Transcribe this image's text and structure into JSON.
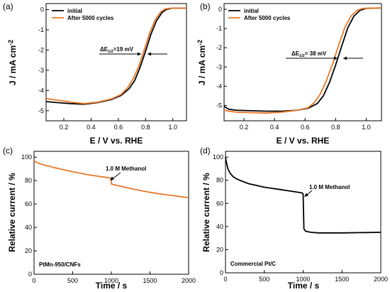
{
  "colors": {
    "initial": "#000000",
    "after": "#e8792a",
    "line_c": "#e8792a",
    "line_d": "#000000"
  },
  "chart_data": [
    {
      "panel": "(a)",
      "type": "line",
      "xlabel": "E / V vs. RHE",
      "ylabel": "J / mA cm-2",
      "xlim": [
        0.07,
        1.1
      ],
      "ylim": [
        -5.5,
        0.3
      ],
      "xticks": [
        0.2,
        0.4,
        0.6,
        0.8,
        1.0
      ],
      "xtick_labels": [
        "0.2",
        "0.4",
        "0.6",
        "0.8",
        "1.0"
      ],
      "yticks": [
        0,
        -1,
        -2,
        -3,
        -4,
        -5
      ],
      "ytick_labels": [
        "0",
        "-1",
        "-2",
        "-3",
        "-4",
        "-5"
      ],
      "legend": "top-left",
      "annotation": {
        "text": "ΔE1/2=19 mV",
        "main": "ΔE",
        "sub": "1/2",
        "rest": "=19 mV",
        "y": -2.0,
        "x_from": 0.81,
        "x_to": 0.83
      },
      "series": [
        {
          "name": "initial",
          "x": [
            0.07,
            0.15,
            0.25,
            0.35,
            0.45,
            0.55,
            0.62,
            0.68,
            0.72,
            0.76,
            0.8,
            0.84,
            0.88,
            0.92,
            0.95,
            0.98,
            1.0,
            1.1
          ],
          "y": [
            -4.55,
            -4.6,
            -4.65,
            -4.68,
            -4.6,
            -4.45,
            -4.25,
            -3.9,
            -3.5,
            -2.85,
            -2.05,
            -1.2,
            -0.55,
            -0.15,
            0.0,
            0.05,
            0.07,
            0.07
          ]
        },
        {
          "name": "After 5000 cycles",
          "x": [
            0.07,
            0.12,
            0.2,
            0.28,
            0.35,
            0.45,
            0.55,
            0.62,
            0.67,
            0.71,
            0.75,
            0.79,
            0.83,
            0.87,
            0.91,
            0.94,
            0.97,
            1.0,
            1.1
          ],
          "y": [
            -4.4,
            -4.45,
            -4.52,
            -4.6,
            -4.65,
            -4.58,
            -4.42,
            -4.2,
            -3.85,
            -3.4,
            -2.8,
            -2.0,
            -1.15,
            -0.5,
            -0.12,
            0.02,
            0.06,
            0.07,
            0.07
          ]
        }
      ]
    },
    {
      "panel": "(b)",
      "type": "line",
      "xlabel": "E / V vs. RHE",
      "ylabel": "J / mA cm-2",
      "xlim": [
        0.07,
        1.1
      ],
      "ylim": [
        -5.8,
        0.3
      ],
      "xticks": [
        0.2,
        0.4,
        0.6,
        0.8,
        1.0
      ],
      "xtick_labels": [
        "0.2",
        "0.4",
        "0.6",
        "0.8",
        "1.0"
      ],
      "yticks": [
        0,
        -1,
        -2,
        -3,
        -4,
        -5
      ],
      "ytick_labels": [
        "0",
        "-1",
        "-2",
        "-3",
        "-4",
        "-5"
      ],
      "legend": "top-left",
      "annotation": {
        "text": "ΔE1/2= 38 mV",
        "main": "ΔE",
        "sub": "1/2",
        "rest": "= 38 mV",
        "y": -2.6,
        "x_from": 0.82,
        "x_to": 0.86
      },
      "series": [
        {
          "name": "initial",
          "x": [
            0.07,
            0.1,
            0.15,
            0.25,
            0.35,
            0.45,
            0.55,
            0.62,
            0.68,
            0.72,
            0.76,
            0.8,
            0.84,
            0.88,
            0.92,
            0.96,
            1.0,
            1.1
          ],
          "y": [
            -5.05,
            -5.2,
            -5.25,
            -5.28,
            -5.3,
            -5.3,
            -5.25,
            -5.15,
            -4.9,
            -4.5,
            -3.8,
            -2.9,
            -1.9,
            -0.95,
            -0.35,
            -0.05,
            0.05,
            0.07
          ]
        },
        {
          "name": "After 5000 cycles",
          "x": [
            0.07,
            0.1,
            0.15,
            0.25,
            0.35,
            0.45,
            0.55,
            0.62,
            0.66,
            0.7,
            0.74,
            0.78,
            0.82,
            0.86,
            0.9,
            0.94,
            0.98,
            1.1
          ],
          "y": [
            -5.25,
            -5.3,
            -5.35,
            -5.38,
            -5.4,
            -5.35,
            -5.25,
            -5.12,
            -4.85,
            -4.4,
            -3.7,
            -2.85,
            -1.85,
            -0.95,
            -0.35,
            -0.05,
            0.05,
            0.07
          ]
        }
      ]
    },
    {
      "panel": "(c)",
      "type": "line",
      "xlabel": "Time / s",
      "ylabel": "Relative current / %",
      "xlim": [
        0,
        2000
      ],
      "ylim": [
        0,
        105
      ],
      "xticks": [
        0,
        500,
        1000,
        1500,
        2000
      ],
      "xtick_labels": [
        "0",
        "500",
        "1000",
        "1500",
        "2000"
      ],
      "yticks": [
        0,
        20,
        40,
        60,
        80,
        100
      ],
      "ytick_labels": [
        "0",
        "20",
        "40",
        "60",
        "80",
        "100"
      ],
      "caption": "PtMn-950/CNFs",
      "annotation": {
        "text": "1.0 M Methanol",
        "at_x": 1000,
        "at_y": 82
      },
      "series": [
        {
          "name": "",
          "x": [
            0,
            50,
            150,
            300,
            500,
            700,
            900,
            999,
            1001,
            1100,
            1300,
            1500,
            1700,
            1900,
            2000
          ],
          "y": [
            97,
            95,
            93,
            90.5,
            87.5,
            85,
            83,
            82,
            77,
            75.5,
            72.5,
            70,
            68,
            66.3,
            65.5
          ]
        }
      ]
    },
    {
      "panel": "(d)",
      "type": "line",
      "xlabel": "Time / s",
      "ylabel": "Relative current / %",
      "xlim": [
        0,
        2000
      ],
      "ylim": [
        0,
        105
      ],
      "xticks": [
        0,
        500,
        1000,
        1500,
        2000
      ],
      "xtick_labels": [
        "0",
        "500",
        "1000",
        "1500",
        "2000"
      ],
      "yticks": [
        0,
        20,
        40,
        60,
        80,
        100
      ],
      "ytick_labels": [
        "0",
        "20",
        "40",
        "60",
        "80",
        "100"
      ],
      "caption": "Commercial Pt/C",
      "annotation": {
        "text": "1.0 M Methanol",
        "at_x": 1000,
        "at_y": 69
      },
      "series": [
        {
          "name": "",
          "x": [
            0,
            10,
            30,
            60,
            100,
            150,
            200,
            300,
            400,
            500,
            600,
            700,
            800,
            900,
            990,
            1000,
            1010,
            1030,
            1100,
            1200,
            1500,
            2000
          ],
          "y": [
            100,
            96,
            90,
            86,
            83,
            81,
            79.5,
            77,
            75.5,
            74,
            73,
            72,
            71,
            70,
            69,
            68,
            38,
            36,
            35,
            34.5,
            34.5,
            35
          ]
        }
      ]
    }
  ]
}
